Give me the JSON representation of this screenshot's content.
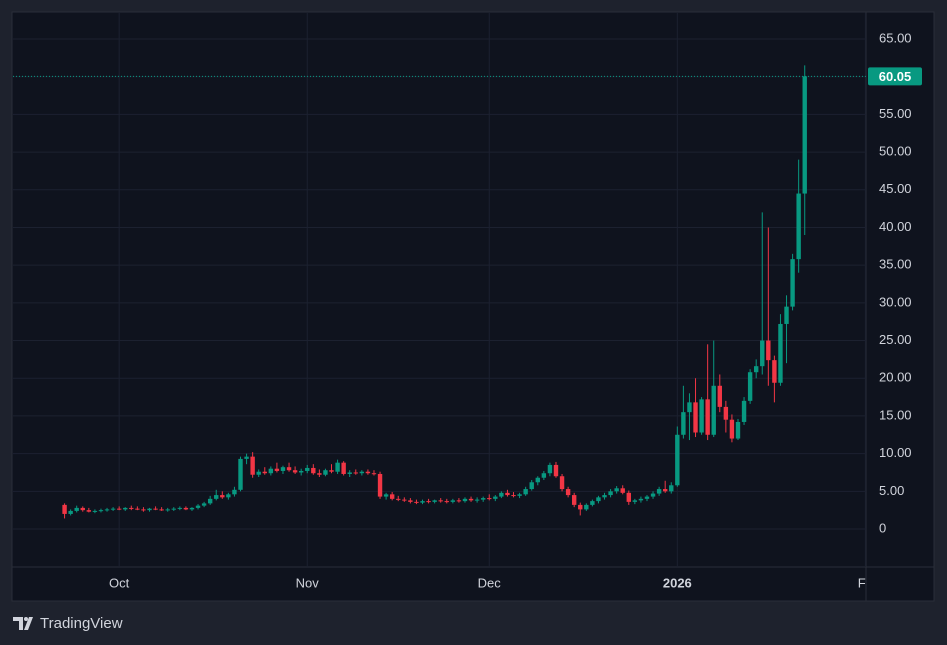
{
  "chart_data": {
    "type": "candlestick",
    "x": [
      -9,
      -8,
      -7,
      -6,
      -5,
      -4,
      -3,
      -2,
      -1,
      0,
      1,
      2,
      3,
      4,
      5,
      6,
      7,
      8,
      9,
      10,
      11,
      12,
      13,
      14,
      15,
      16,
      17,
      18,
      19,
      20,
      21,
      22,
      23,
      24,
      25,
      26,
      27,
      28,
      29,
      30,
      31,
      32,
      33,
      34,
      35,
      36,
      37,
      38,
      39,
      40,
      41,
      42,
      43,
      44,
      45,
      46,
      47,
      48,
      49,
      50,
      51,
      52,
      53,
      54,
      55,
      56,
      57,
      58,
      59,
      60,
      61,
      62,
      63,
      64,
      65,
      66,
      67,
      68,
      69,
      70,
      71,
      72,
      73,
      74,
      75,
      76,
      77,
      78,
      79,
      80,
      81,
      82,
      83,
      84,
      85,
      86,
      87,
      88,
      89,
      90,
      91,
      92,
      93,
      94,
      95,
      96,
      97,
      98,
      99,
      100,
      101,
      102,
      103,
      104,
      105,
      106,
      107,
      108,
      109,
      110,
      111,
      112,
      113
    ],
    "open": [
      3.2,
      2.0,
      2.4,
      2.8,
      2.5,
      2.3,
      2.4,
      2.5,
      2.6,
      2.7,
      2.6,
      2.8,
      2.7,
      2.6,
      2.5,
      2.7,
      2.6,
      2.5,
      2.6,
      2.7,
      2.8,
      2.6,
      2.8,
      3.1,
      3.4,
      4.0,
      4.5,
      4.2,
      4.6,
      5.2,
      9.3,
      9.6,
      7.2,
      7.6,
      7.4,
      8.0,
      7.7,
      8.2,
      7.8,
      7.5,
      7.7,
      8.1,
      7.4,
      7.2,
      7.8,
      7.6,
      8.8,
      7.3,
      7.5,
      7.4,
      7.6,
      7.4,
      7.3,
      4.3,
      4.6,
      4.0,
      3.9,
      3.8,
      3.6,
      3.5,
      3.7,
      3.6,
      3.8,
      3.7,
      3.6,
      3.8,
      3.7,
      4.0,
      3.8,
      3.9,
      4.1,
      4.0,
      4.3,
      4.8,
      4.5,
      4.4,
      4.6,
      5.3,
      6.2,
      6.8,
      7.4,
      8.5,
      7.0,
      5.3,
      4.5,
      3.2,
      2.6,
      3.2,
      3.7,
      4.2,
      4.5,
      5.0,
      5.4,
      4.8,
      3.6,
      3.8,
      4.0,
      4.3,
      4.7,
      5.3,
      5.0,
      5.8,
      12.5,
      15.5,
      16.8,
      12.8,
      17.2,
      12.5,
      19.0,
      16.2,
      14.5,
      12.0,
      14.2,
      17.0,
      20.8,
      21.6,
      25.0,
      22.4,
      19.4,
      27.2,
      29.5,
      35.8,
      44.5
    ],
    "high": [
      3.4,
      2.6,
      3.1,
      3.0,
      2.8,
      2.6,
      2.7,
      2.8,
      2.9,
      3.0,
      2.9,
      3.1,
      3.0,
      2.9,
      2.8,
      3.0,
      2.9,
      2.8,
      2.9,
      3.0,
      3.0,
      2.9,
      3.3,
      3.6,
      4.4,
      5.2,
      5.0,
      4.8,
      5.6,
      9.6,
      10.0,
      10.2,
      7.9,
      8.2,
      8.3,
      8.8,
      8.4,
      8.8,
      8.3,
      8.0,
      8.5,
      8.6,
      7.9,
      8.0,
      8.6,
      9.2,
      9.0,
      7.8,
      7.9,
      7.8,
      7.9,
      7.8,
      7.6,
      4.8,
      4.9,
      4.4,
      4.2,
      4.1,
      3.9,
      3.9,
      4.0,
      3.9,
      4.1,
      4.0,
      4.0,
      4.1,
      4.2,
      4.3,
      4.2,
      4.3,
      4.6,
      4.5,
      5.0,
      5.2,
      4.9,
      4.8,
      5.6,
      6.5,
      7.0,
      7.7,
      8.8,
      8.9,
      7.3,
      5.6,
      4.8,
      3.5,
      3.4,
      3.9,
      4.4,
      4.8,
      5.3,
      5.7,
      5.8,
      5.1,
      4.0,
      4.3,
      4.5,
      5.0,
      5.6,
      6.4,
      6.2,
      13.6,
      19.0,
      18.0,
      20.0,
      17.5,
      24.5,
      25.0,
      20.5,
      17.0,
      15.2,
      14.6,
      17.5,
      21.2,
      22.5,
      42.0,
      40.0,
      23.0,
      28.5,
      31.0,
      36.5,
      49.0,
      61.5
    ],
    "low": [
      1.4,
      1.8,
      2.2,
      2.3,
      2.2,
      2.1,
      2.2,
      2.3,
      2.4,
      2.5,
      2.4,
      2.5,
      2.5,
      2.3,
      2.3,
      2.5,
      2.4,
      2.3,
      2.4,
      2.5,
      2.5,
      2.4,
      2.6,
      2.9,
      3.2,
      3.8,
      4.0,
      3.9,
      4.3,
      5.0,
      8.6,
      6.8,
      6.9,
      7.2,
      7.1,
      7.5,
      7.3,
      7.6,
      7.3,
      7.1,
      7.4,
      7.2,
      6.9,
      7.0,
      7.4,
      7.3,
      7.1,
      6.9,
      7.2,
      7.1,
      7.2,
      7.1,
      4.0,
      3.9,
      3.8,
      3.7,
      3.6,
      3.4,
      3.3,
      3.3,
      3.4,
      3.4,
      3.5,
      3.4,
      3.4,
      3.5,
      3.5,
      3.6,
      3.5,
      3.6,
      3.8,
      3.7,
      4.1,
      4.3,
      4.2,
      4.1,
      4.4,
      5.1,
      5.8,
      6.5,
      7.0,
      6.8,
      5.0,
      4.2,
      2.9,
      1.8,
      2.4,
      3.0,
      3.4,
      3.9,
      4.2,
      4.7,
      4.6,
      3.2,
      3.3,
      3.5,
      3.7,
      4.0,
      4.4,
      4.8,
      4.7,
      5.6,
      12.0,
      11.8,
      12.2,
      12.5,
      11.8,
      12.2,
      15.5,
      12.8,
      11.5,
      11.8,
      13.8,
      16.6,
      20.0,
      20.5,
      19.0,
      16.8,
      19.0,
      22.0,
      29.0,
      34.0,
      39.0
    ],
    "close": [
      2.0,
      2.4,
      2.8,
      2.5,
      2.3,
      2.4,
      2.5,
      2.6,
      2.7,
      2.6,
      2.8,
      2.7,
      2.6,
      2.5,
      2.7,
      2.6,
      2.5,
      2.6,
      2.7,
      2.8,
      2.6,
      2.8,
      3.1,
      3.4,
      4.0,
      4.5,
      4.2,
      4.6,
      5.2,
      9.3,
      9.6,
      7.2,
      7.6,
      7.4,
      8.0,
      7.7,
      8.2,
      7.8,
      7.5,
      7.7,
      8.1,
      7.4,
      7.2,
      7.8,
      7.6,
      8.8,
      7.3,
      7.5,
      7.4,
      7.6,
      7.4,
      7.3,
      4.3,
      4.6,
      4.0,
      3.9,
      3.8,
      3.6,
      3.5,
      3.7,
      3.6,
      3.8,
      3.7,
      3.6,
      3.8,
      3.7,
      4.0,
      3.8,
      3.9,
      4.1,
      4.0,
      4.3,
      4.8,
      4.5,
      4.4,
      4.6,
      5.3,
      6.2,
      6.8,
      7.4,
      8.5,
      7.0,
      5.3,
      4.5,
      3.2,
      2.6,
      3.2,
      3.7,
      4.2,
      4.5,
      5.0,
      5.4,
      4.8,
      3.6,
      3.8,
      4.0,
      4.3,
      4.7,
      5.3,
      5.0,
      5.8,
      12.5,
      15.5,
      16.8,
      12.8,
      17.2,
      12.5,
      19.0,
      16.2,
      14.5,
      12.0,
      14.2,
      17.0,
      20.8,
      21.6,
      25.0,
      22.4,
      19.4,
      27.2,
      29.5,
      35.8,
      44.5,
      60.05
    ],
    "up_color": "#089981",
    "down_color": "#f23645",
    "xlim": [
      -17.5,
      123.1
    ],
    "xticks": [
      {
        "value": 0,
        "label": "Oct"
      },
      {
        "value": 31,
        "label": "Nov"
      },
      {
        "value": 61,
        "label": "Dec"
      },
      {
        "value": 92,
        "label": "2026"
      },
      {
        "value": 123,
        "label": "Fe"
      }
    ],
    "ylim": [
      -5.04,
      68.45
    ],
    "yticks": [
      0,
      {
        "value": 5,
        "label": "5.00"
      },
      {
        "value": 10,
        "label": "10.00"
      },
      {
        "value": 15,
        "label": "15.00"
      },
      {
        "value": 20,
        "label": "20.00"
      },
      {
        "value": 25,
        "label": "25.00"
      },
      {
        "value": 30,
        "label": "30.00"
      },
      {
        "value": 35,
        "label": "35.00"
      },
      {
        "value": 40,
        "label": "40.00"
      },
      {
        "value": 45,
        "label": "45.00"
      },
      {
        "value": 50,
        "label": "50.00"
      },
      {
        "value": 55,
        "label": "55.00"
      },
      {
        "value": 60,
        "label": "60.00"
      },
      {
        "value": 65,
        "label": "65.00"
      }
    ],
    "grid": true
  },
  "branding": "TradingView"
}
